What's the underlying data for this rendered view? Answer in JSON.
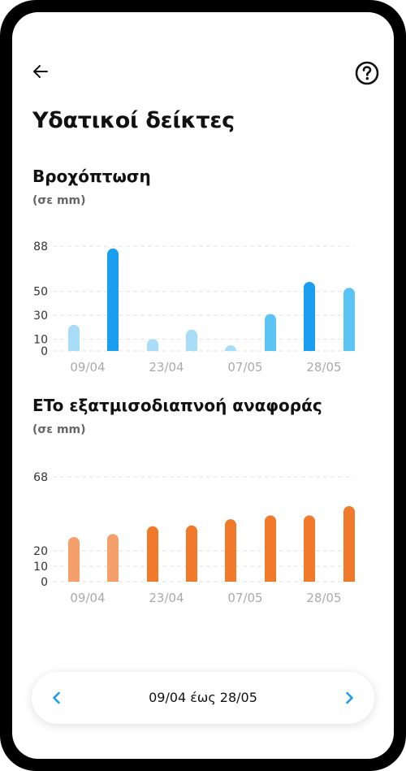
{
  "header": {
    "back_icon": "arrow-left-icon",
    "help_icon": "help-circle-icon",
    "title": "Υδατικοί δείκτες"
  },
  "colors": {
    "rain_light": "#a9dcf7",
    "rain_medium": "#5cc3f5",
    "rain_dark": "#1a9ef0",
    "et_light": "#f5a06a",
    "et_dark": "#f07a2a",
    "axis_text": "#333333",
    "tick_text": "#aaaaaa",
    "grid": "#e2e2e2"
  },
  "chart_data": [
    {
      "type": "bar",
      "title": "Βροχόπτωση",
      "ylabel": "(σε mm)",
      "y_ticks": [
        0,
        10,
        30,
        50,
        88
      ],
      "ylim": [
        0,
        88
      ],
      "x_tick_labels": [
        "09/04",
        "23/04",
        "07/05",
        "28/05"
      ],
      "values": [
        22,
        86,
        10,
        18,
        0.5,
        31,
        58,
        53
      ],
      "bar_tones": [
        "light",
        "dark",
        "light",
        "light",
        "light",
        "medium",
        "dark",
        "medium"
      ],
      "grid": true
    },
    {
      "type": "bar",
      "title": "ETo εξατμισοδιαπνοή αναφοράς",
      "ylabel": "(σε mm)",
      "y_ticks": [
        0,
        10,
        20,
        68
      ],
      "ylim": [
        0,
        68
      ],
      "x_tick_labels": [
        "09/04",
        "23/04",
        "07/05",
        "28/05"
      ],
      "values": [
        29,
        31,
        36,
        36.5,
        40.5,
        43,
        43,
        49
      ],
      "bar_tones": [
        "light",
        "light",
        "dark",
        "dark",
        "dark",
        "dark",
        "dark",
        "dark"
      ],
      "grid": true
    }
  ],
  "range": {
    "prev_icon": "chevron-left-icon",
    "next_icon": "chevron-right-icon",
    "label": "09/04 έως 28/05"
  }
}
